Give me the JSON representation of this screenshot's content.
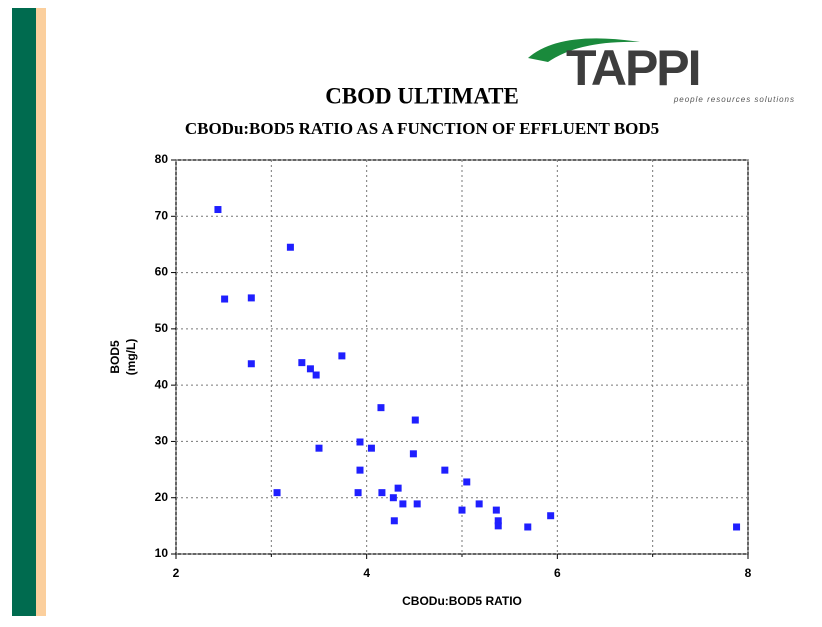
{
  "logo": {
    "name": "TAPPI",
    "tagline": "people resources solutions"
  },
  "chart_data": {
    "type": "scatter",
    "title": "CBOD ULTIMATE",
    "subtitle": "CBODu:BOD5 RATIO AS A FUNCTION OF EFFLUENT BOD5",
    "xlabel": "CBODu:BOD5 RATIO",
    "ylabel": [
      "BOD5",
      "(mg/L)"
    ],
    "color": "#1f1fff",
    "x": [
      2.44,
      2.51,
      2.79,
      2.79,
      3.06,
      3.2,
      3.32,
      3.41,
      3.47,
      3.5,
      3.74,
      3.91,
      3.93,
      3.93,
      4.05,
      4.15,
      4.16,
      4.28,
      4.29,
      4.33,
      4.38,
      4.49,
      4.51,
      4.53,
      4.82,
      5.0,
      5.05,
      5.18,
      5.36,
      5.38,
      5.38,
      5.69,
      5.93,
      7.88
    ],
    "values": [
      71.2,
      55.3,
      55.5,
      43.8,
      20.9,
      64.5,
      44,
      42.9,
      41.8,
      28.8,
      45.2,
      20.9,
      29.9,
      24.9,
      28.8,
      36,
      20.9,
      20,
      15.9,
      21.7,
      18.9,
      27.8,
      33.8,
      18.9,
      24.9,
      17.8,
      22.8,
      18.9,
      17.8,
      15.9,
      15,
      14.8,
      16.8,
      14.8
    ],
    "xlim": [
      2,
      8
    ],
    "xticks": [
      2,
      4,
      6,
      8
    ],
    "xminorticks": [
      3,
      5,
      7
    ],
    "ylim": [
      10,
      80
    ],
    "yticks": [
      10,
      20,
      30,
      40,
      50,
      60,
      70,
      80
    ],
    "grid": true
  }
}
